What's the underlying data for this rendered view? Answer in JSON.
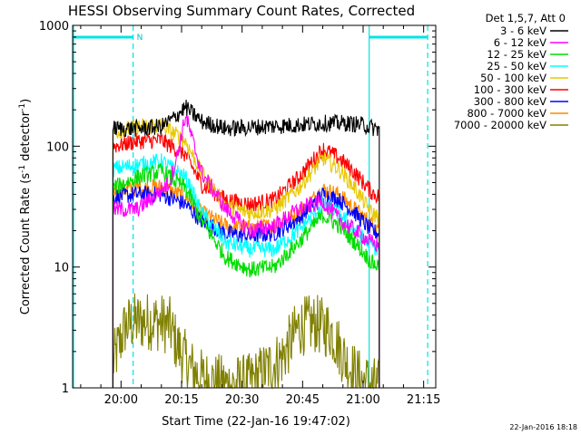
{
  "chart_data": {
    "type": "line",
    "title": "HESSI Observing Summary Count Rates, Corrected",
    "xlabel": "Start Time (22-Jan-16 19:47:02)",
    "ylabel_pre": "Corrected Count Rate (s",
    "ylabel_sup1": "-1",
    "ylabel_mid": " detector",
    "ylabel_sup2": "-1",
    "ylabel_post": ")",
    "yscale": "log",
    "ylim": [
      1,
      1000
    ],
    "xlim_min": [
      -12,
      78
    ],
    "x_unit": "minutes after 20:00",
    "y_ticks": [
      {
        "v": 1,
        "label": "1"
      },
      {
        "v": 10,
        "label": "10"
      },
      {
        "v": 100,
        "label": "100"
      },
      {
        "v": 1000,
        "label": "1000"
      }
    ],
    "x_ticks": [
      {
        "t": 0,
        "label": "20:00"
      },
      {
        "t": 15,
        "label": "20:15"
      },
      {
        "t": 30,
        "label": "20:30"
      },
      {
        "t": 45,
        "label": "20:45"
      },
      {
        "t": 60,
        "label": "21:00"
      },
      {
        "t": 75,
        "label": "21:15"
      }
    ],
    "legend_title": "Det 1,5,7, Att 0",
    "attenuator_mark": "N",
    "marker_lines": {
      "solid": [
        -12,
        61.5
      ],
      "dashed": [
        3,
        76
      ]
    },
    "timestamp": "22-Jan-2016 18:18",
    "series": [
      {
        "name": "3 - 6 keV",
        "color": "#000000",
        "t": [
          -2,
          4,
          10,
          13,
          16,
          20,
          26,
          35,
          44,
          50,
          56,
          60,
          63,
          64
        ],
        "y": [
          140,
          140,
          145,
          170,
          210,
          160,
          140,
          145,
          150,
          155,
          155,
          150,
          140,
          140
        ]
      },
      {
        "name": "6 - 12 keV",
        "color": "#ff00ff",
        "t": [
          -2,
          4,
          8,
          12,
          14,
          16,
          20,
          26,
          32,
          38,
          44,
          50,
          54,
          58,
          62,
          64
        ],
        "y": [
          30,
          30,
          38,
          50,
          85,
          180,
          60,
          30,
          20,
          22,
          30,
          35,
          25,
          20,
          16,
          15
        ]
      },
      {
        "name": "12 - 25 keV",
        "color": "#00dd00",
        "t": [
          -2,
          4,
          10,
          16,
          20,
          26,
          32,
          38,
          44,
          50,
          54,
          58,
          62,
          64
        ],
        "y": [
          45,
          55,
          62,
          45,
          24,
          12,
          9.5,
          10,
          16,
          27,
          22,
          16,
          11,
          10
        ]
      },
      {
        "name": "25 - 50 keV",
        "color": "#00ffff",
        "t": [
          -2,
          4,
          10,
          16,
          20,
          26,
          32,
          38,
          44,
          50,
          54,
          58,
          62,
          64
        ],
        "y": [
          65,
          70,
          75,
          55,
          28,
          16,
          14,
          14,
          20,
          33,
          28,
          20,
          15,
          14
        ]
      },
      {
        "name": "50 - 100 keV",
        "color": "#e8c800",
        "t": [
          -2,
          4,
          10,
          16,
          20,
          26,
          32,
          38,
          44,
          50,
          54,
          58,
          62,
          64
        ],
        "y": [
          130,
          145,
          150,
          110,
          60,
          32,
          28,
          30,
          45,
          80,
          65,
          45,
          28,
          26
        ]
      },
      {
        "name": "100 - 300 keV",
        "color": "#ff0000",
        "t": [
          -2,
          4,
          10,
          16,
          20,
          26,
          32,
          38,
          44,
          50,
          54,
          58,
          62,
          64
        ],
        "y": [
          100,
          110,
          112,
          85,
          48,
          36,
          33,
          36,
          55,
          95,
          80,
          60,
          42,
          38
        ]
      },
      {
        "name": "300 - 800 keV",
        "color": "#0000ff",
        "t": [
          -2,
          4,
          10,
          16,
          20,
          26,
          32,
          38,
          44,
          50,
          54,
          58,
          62,
          64
        ],
        "y": [
          38,
          40,
          40,
          33,
          24,
          19,
          18,
          19,
          25,
          40,
          36,
          28,
          20,
          19
        ]
      },
      {
        "name": "800 - 7000 keV",
        "color": "#ff8c00",
        "t": [
          -2,
          4,
          10,
          16,
          20,
          26,
          32,
          38,
          44,
          50,
          54,
          58,
          62,
          64
        ],
        "y": [
          42,
          45,
          46,
          38,
          28,
          22,
          21,
          22,
          28,
          44,
          40,
          30,
          23,
          22
        ]
      },
      {
        "name": "7000 - 20000 keV",
        "color": "#808000",
        "t": [
          -2,
          1,
          3,
          8,
          12,
          14,
          17,
          20,
          26,
          32,
          40,
          44,
          48,
          52,
          56,
          59,
          62,
          64
        ],
        "y": [
          1.6,
          3.2,
          3.5,
          3.6,
          3.3,
          2.2,
          1.5,
          1.2,
          1.05,
          1.1,
          1.8,
          3.2,
          3.4,
          3.0,
          1.6,
          1.2,
          1.05,
          1.0
        ]
      }
    ]
  }
}
